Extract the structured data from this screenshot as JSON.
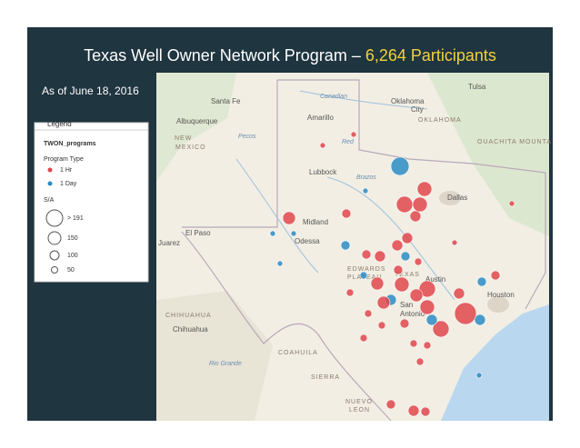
{
  "header": {
    "title": "Texas Well Owner Network Program –",
    "highlight": "6,264 Participants",
    "subtitle": "As of June 18, 2016"
  },
  "legend": {
    "heading": "Legend",
    "layer": "TWON_programs",
    "type_title": "Program Type",
    "types": [
      "1 Hr",
      "1 Day"
    ],
    "size_title": "S/A",
    "sizes": [
      "> 191",
      "150",
      "100",
      "50"
    ]
  },
  "map": {
    "labels": [
      "Santa Fe",
      "Albuquerque",
      "NEW",
      "MEXICO",
      "Amarillo",
      "Oklahoma",
      "City",
      "OKLAHOMA",
      "Tulsa",
      "Canadian",
      "Red",
      "Lubbock",
      "Brazos",
      "Dallas",
      "Midland",
      "Odessa",
      "El Paso",
      "Juarez",
      "EDWARDS",
      "PLATEAU",
      "TEXAS",
      "Austin",
      "San",
      "Antonio",
      "Houston",
      "CHIHUAHUA",
      "Chihuahua",
      "COAHUILA",
      "SIERRA",
      "NUEVO",
      "LEON",
      "OUACHITA MOUNTA",
      "Pecos",
      "Rio Grande"
    ]
  }
}
